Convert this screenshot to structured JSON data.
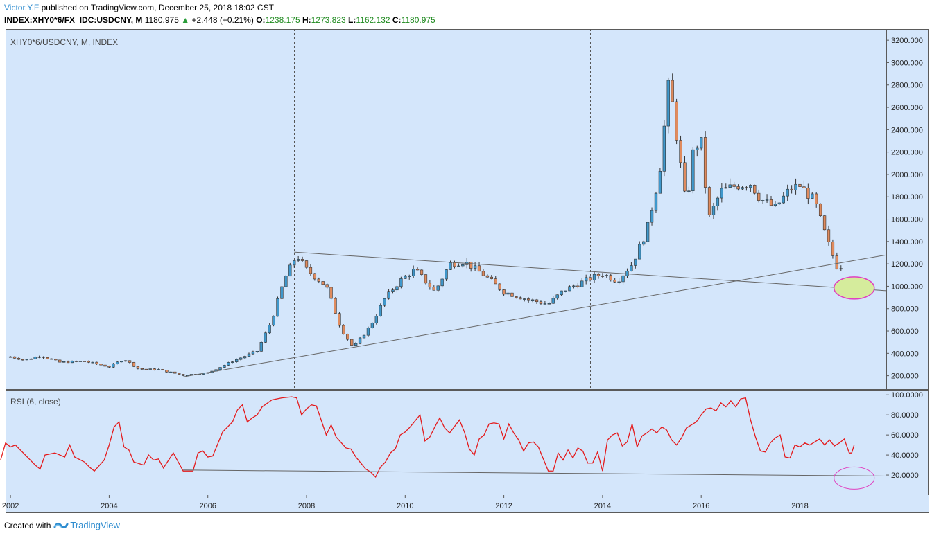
{
  "header": {
    "author": "Victor.Y.F",
    "published_text": "published on TradingView.com, December 25, 2018 18:02 CST",
    "symbol": "INDEX:XHY0*6/FX_IDC:USDCNY, M",
    "last": "1180.975",
    "change": "+2.448 (+0.21%)",
    "o_label": "O:",
    "o": "1238.175",
    "h_label": "H:",
    "h": "1273.823",
    "l_label": "L:",
    "l": "1162.132",
    "c_label": "C:",
    "c": "1180.975"
  },
  "footer": {
    "created_with": "Created with",
    "brand": "TradingView"
  },
  "colors": {
    "background": "#d4e6fb",
    "up": "#3f98cc",
    "down": "#e08b5e",
    "rsi_line": "#e41a1c",
    "annotation_circle": "#e040c0",
    "annotation_fill": "#d5ec9c",
    "trendline": "#666666"
  },
  "chart_data": [
    {
      "type": "candlestick",
      "title": "XHY0*6/USDCNY, M, INDEX",
      "x_range": [
        2001.9,
        2019.75
      ],
      "ylim": [
        80,
        3300
      ],
      "y_ticks": [
        200,
        400,
        600,
        800,
        1000,
        1200,
        1400,
        1600,
        1800,
        2000,
        2200,
        2400,
        2600,
        2800,
        3000,
        3200
      ],
      "y_tick_labels": [
        "200.000",
        "400.000",
        "600.000",
        "800.000",
        "1000.000",
        "1200.000",
        "1400.000",
        "1600.000",
        "1800.000",
        "2000.000",
        "2200.000",
        "2400.000",
        "2600.000",
        "2800.000",
        "3000.000",
        "3200.000"
      ],
      "x_ticks": [
        2002,
        2004,
        2006,
        2008,
        2010,
        2012,
        2014,
        2016,
        2018
      ],
      "x_tick_labels": [
        "2002",
        "2004",
        "2006",
        "2008",
        "2010",
        "2012",
        "2014",
        "2016",
        "2018"
      ],
      "close_anchors": [
        [
          2002.0,
          370
        ],
        [
          2002.3,
          340
        ],
        [
          2002.6,
          380
        ],
        [
          2003.0,
          320
        ],
        [
          2003.5,
          330
        ],
        [
          2004.0,
          280
        ],
        [
          2004.3,
          350
        ],
        [
          2004.6,
          260
        ],
        [
          2005.0,
          255
        ],
        [
          2005.5,
          205
        ],
        [
          2006.0,
          225
        ],
        [
          2006.5,
          330
        ],
        [
          2007.0,
          420
        ],
        [
          2007.3,
          700
        ],
        [
          2007.55,
          1060
        ],
        [
          2007.8,
          1280
        ],
        [
          2008.0,
          1150
        ],
        [
          2008.4,
          1000
        ],
        [
          2008.7,
          620
        ],
        [
          2008.95,
          450
        ],
        [
          2009.3,
          650
        ],
        [
          2009.6,
          900
        ],
        [
          2009.9,
          1050
        ],
        [
          2010.2,
          1150
        ],
        [
          2010.6,
          950
        ],
        [
          2010.9,
          1200
        ],
        [
          2011.2,
          1220
        ],
        [
          2011.6,
          1100
        ],
        [
          2012.0,
          950
        ],
        [
          2012.5,
          880
        ],
        [
          2012.9,
          840
        ],
        [
          2013.2,
          960
        ],
        [
          2013.5,
          1020
        ],
        [
          2013.8,
          1080
        ],
        [
          2014.0,
          1110
        ],
        [
          2014.3,
          1050
        ],
        [
          2014.6,
          1200
        ],
        [
          2014.9,
          1500
        ],
        [
          2015.15,
          2000
        ],
        [
          2015.35,
          2850
        ],
        [
          2015.5,
          2350
        ],
        [
          2015.7,
          1700
        ],
        [
          2015.85,
          2250
        ],
        [
          2016.0,
          2280
        ],
        [
          2016.15,
          1600
        ],
        [
          2016.4,
          1850
        ],
        [
          2016.7,
          1900
        ],
        [
          2017.0,
          1920
        ],
        [
          2017.2,
          1780
        ],
        [
          2017.5,
          1700
        ],
        [
          2017.8,
          1870
        ],
        [
          2018.0,
          1900
        ],
        [
          2018.3,
          1760
        ],
        [
          2018.45,
          1550
        ],
        [
          2018.6,
          1350
        ],
        [
          2018.75,
          1180
        ],
        [
          2018.9,
          1181
        ]
      ],
      "vertical_markers_x": [
        2007.75,
        2013.75
      ],
      "trendlines": [
        {
          "from": [
            2005.5,
            190
          ],
          "to": [
            2019.75,
            1280
          ]
        },
        {
          "from": [
            2007.75,
            1305
          ],
          "to": [
            2019.75,
            960
          ]
        }
      ],
      "annotation_ellipse": {
        "x": 2019.1,
        "y": 985,
        "filled": true
      }
    },
    {
      "type": "line",
      "title": "RSI (6, close)",
      "x_range": [
        2001.9,
        2019.75
      ],
      "ylim": [
        0,
        105
      ],
      "y_ticks": [
        20,
        40,
        60,
        80,
        100
      ],
      "y_tick_labels": [
        "20.0000",
        "40.0000",
        "60.0000",
        "80.0000",
        "100.0000"
      ],
      "series": [
        {
          "values": [
            [
              2002.3,
              35
            ],
            [
              2002.4,
              52
            ],
            [
              2002.5,
              48
            ],
            [
              2002.6,
              50
            ],
            [
              2002.8,
              40
            ],
            [
              2003.0,
              30
            ],
            [
              2003.1,
              26
            ],
            [
              2003.2,
              40
            ],
            [
              2003.4,
              42
            ],
            [
              2003.6,
              38
            ],
            [
              2003.7,
              50
            ],
            [
              2003.8,
              38
            ],
            [
              2004.0,
              33
            ],
            [
              2004.1,
              28
            ],
            [
              2004.2,
              24
            ],
            [
              2004.4,
              35
            ],
            [
              2004.5,
              50
            ],
            [
              2004.6,
              68
            ],
            [
              2004.7,
              73
            ],
            [
              2004.8,
              48
            ],
            [
              2004.9,
              45
            ],
            [
              2005.0,
              33
            ],
            [
              2005.2,
              30
            ],
            [
              2005.3,
              40
            ],
            [
              2005.4,
              35
            ],
            [
              2005.5,
              36
            ],
            [
              2005.6,
              27
            ],
            [
              2005.8,
              42
            ],
            [
              2005.9,
              33
            ],
            [
              2006.0,
              24
            ],
            [
              2006.2,
              24
            ],
            [
              2006.3,
              42
            ],
            [
              2006.4,
              44
            ],
            [
              2006.5,
              38
            ],
            [
              2006.6,
              39
            ],
            [
              2006.8,
              63
            ],
            [
              2006.9,
              68
            ],
            [
              2007.0,
              73
            ],
            [
              2007.1,
              85
            ],
            [
              2007.2,
              90
            ],
            [
              2007.3,
              73
            ],
            [
              2007.4,
              77
            ],
            [
              2007.5,
              80
            ],
            [
              2007.6,
              88
            ],
            [
              2007.8,
              95
            ],
            [
              2008.0,
              97
            ],
            [
              2008.2,
              98
            ],
            [
              2008.3,
              97
            ],
            [
              2008.4,
              80
            ],
            [
              2008.5,
              86
            ],
            [
              2008.6,
              90
            ],
            [
              2008.7,
              89
            ],
            [
              2008.9,
              60
            ],
            [
              2009.0,
              70
            ],
            [
              2009.1,
              58
            ],
            [
              2009.3,
              47
            ],
            [
              2009.4,
              46
            ],
            [
              2009.5,
              38
            ],
            [
              2009.6,
              32
            ],
            [
              2009.7,
              26
            ],
            [
              2009.8,
              23
            ],
            [
              2009.9,
              18
            ],
            [
              2010.0,
              28
            ],
            [
              2010.1,
              33
            ],
            [
              2010.2,
              42
            ],
            [
              2010.3,
              46
            ],
            [
              2010.4,
              60
            ],
            [
              2010.5,
              63
            ],
            [
              2010.6,
              68
            ],
            [
              2010.8,
              80
            ],
            [
              2010.9,
              54
            ],
            [
              2011.0,
              58
            ],
            [
              2011.1,
              68
            ],
            [
              2011.2,
              77
            ],
            [
              2011.3,
              67
            ],
            [
              2011.4,
              62
            ],
            [
              2011.6,
              75
            ],
            [
              2011.7,
              63
            ],
            [
              2011.8,
              46
            ],
            [
              2011.9,
              40
            ],
            [
              2012.0,
              56
            ],
            [
              2012.1,
              60
            ],
            [
              2012.2,
              71
            ],
            [
              2012.3,
              72
            ],
            [
              2012.4,
              71
            ],
            [
              2012.5,
              56
            ],
            [
              2012.6,
              71
            ],
            [
              2012.7,
              62
            ],
            [
              2012.8,
              55
            ],
            [
              2012.9,
              44
            ],
            [
              2013.0,
              52
            ],
            [
              2013.1,
              53
            ],
            [
              2013.2,
              48
            ],
            [
              2013.3,
              36
            ],
            [
              2013.4,
              24
            ],
            [
              2013.5,
              24
            ],
            [
              2013.6,
              42
            ],
            [
              2013.7,
              35
            ],
            [
              2013.8,
              45
            ],
            [
              2013.9,
              37
            ],
            [
              2014.0,
              47
            ],
            [
              2014.1,
              44
            ],
            [
              2014.2,
              32
            ],
            [
              2014.3,
              32
            ],
            [
              2014.4,
              43
            ],
            [
              2014.5,
              24
            ],
            [
              2014.6,
              55
            ],
            [
              2014.7,
              60
            ],
            [
              2014.8,
              62
            ],
            [
              2014.9,
              49
            ],
            [
              2015.0,
              53
            ],
            [
              2015.1,
              71
            ],
            [
              2015.2,
              48
            ],
            [
              2015.3,
              59
            ],
            [
              2015.4,
              62
            ],
            [
              2015.5,
              66
            ],
            [
              2015.6,
              62
            ],
            [
              2015.7,
              68
            ],
            [
              2015.8,
              65
            ],
            [
              2015.9,
              55
            ],
            [
              2016.0,
              50
            ],
            [
              2016.1,
              57
            ],
            [
              2016.2,
              67
            ],
            [
              2016.3,
              70
            ],
            [
              2016.4,
              73
            ],
            [
              2016.5,
              80
            ],
            [
              2016.6,
              86
            ],
            [
              2016.7,
              87
            ],
            [
              2016.8,
              84
            ],
            [
              2016.9,
              92
            ],
            [
              2017.0,
              88
            ],
            [
              2017.1,
              94
            ],
            [
              2017.2,
              88
            ],
            [
              2017.3,
              96
            ],
            [
              2017.4,
              97
            ],
            [
              2017.5,
              75
            ],
            [
              2017.6,
              58
            ],
            [
              2017.7,
              44
            ],
            [
              2017.8,
              43
            ],
            [
              2017.9,
              52
            ],
            [
              2018.0,
              57
            ],
            [
              2018.1,
              60
            ],
            [
              2018.2,
              38
            ],
            [
              2018.3,
              37
            ],
            [
              2018.4,
              50
            ],
            [
              2018.5,
              48
            ],
            [
              2018.6,
              52
            ],
            [
              2018.7,
              50
            ],
            [
              2018.8,
              53
            ],
            [
              2018.9,
              56
            ],
            [
              2019.0,
              50
            ],
            [
              2019.1,
              55
            ],
            [
              2019.2,
              49
            ],
            [
              2019.3,
              52
            ],
            [
              2019.4,
              56
            ],
            [
              2019.5,
              42
            ],
            [
              2019.55,
              42
            ],
            [
              2019.6,
              50
            ]
          ]
        }
      ],
      "trendline": {
        "from": [
          2005.5,
          25
        ],
        "to": [
          2019.75,
          19
        ]
      },
      "annotation_ellipse": {
        "x": 2019.1,
        "y": 17,
        "filled": false
      }
    }
  ]
}
